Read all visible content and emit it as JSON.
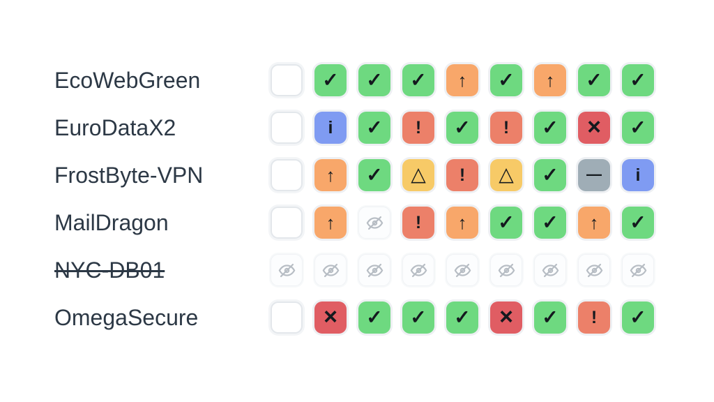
{
  "page": {
    "background": "#ffffff",
    "label_color": "#2c3845"
  },
  "statuses": {
    "empty": {
      "name": "empty",
      "glyph": "",
      "bg": "#ffffff"
    },
    "check": {
      "name": "check",
      "glyph": "✓",
      "bg": "#6ed980"
    },
    "arrow_up": {
      "name": "arrow-up",
      "glyph": "↑",
      "bg": "#f8a76a"
    },
    "info": {
      "name": "info",
      "glyph": "i",
      "bg": "#7f9bf2"
    },
    "alert": {
      "name": "exclamation",
      "glyph": "!",
      "bg": "#ec8069"
    },
    "warning": {
      "name": "warning-triangle",
      "glyph": "△",
      "bg": "#f7ca67"
    },
    "cross": {
      "name": "cross",
      "glyph": "×",
      "bg": "#e05d63"
    },
    "dash": {
      "name": "dash",
      "glyph": "—",
      "bg": "#9fadb6"
    },
    "hidden": {
      "name": "eye-off",
      "glyph": "",
      "bg": "#fcfdfe",
      "icon_color": "#b7bdc4"
    }
  },
  "rows": [
    {
      "label": "EcoWebGreen",
      "decommissioned": false,
      "cells": [
        "empty",
        "check",
        "check",
        "check",
        "arrow_up",
        "check",
        "arrow_up",
        "check",
        "check"
      ]
    },
    {
      "label": "EuroDataX2",
      "decommissioned": false,
      "cells": [
        "empty",
        "info",
        "check",
        "alert",
        "check",
        "alert",
        "check",
        "cross",
        "check"
      ]
    },
    {
      "label": "FrostByte-VPN",
      "decommissioned": false,
      "cells": [
        "empty",
        "arrow_up",
        "check",
        "warning",
        "alert",
        "warning",
        "check",
        "dash",
        "info"
      ]
    },
    {
      "label": "MailDragon",
      "decommissioned": false,
      "cells": [
        "empty",
        "arrow_up",
        "hidden",
        "alert",
        "arrow_up",
        "check",
        "check",
        "arrow_up",
        "check"
      ]
    },
    {
      "label": "NYC-DB01",
      "decommissioned": true,
      "cells": [
        "hidden",
        "hidden",
        "hidden",
        "hidden",
        "hidden",
        "hidden",
        "hidden",
        "hidden",
        "hidden"
      ]
    },
    {
      "label": "OmegaSecure",
      "decommissioned": false,
      "cells": [
        "empty",
        "cross",
        "check",
        "check",
        "check",
        "cross",
        "check",
        "alert",
        "check"
      ]
    }
  ]
}
